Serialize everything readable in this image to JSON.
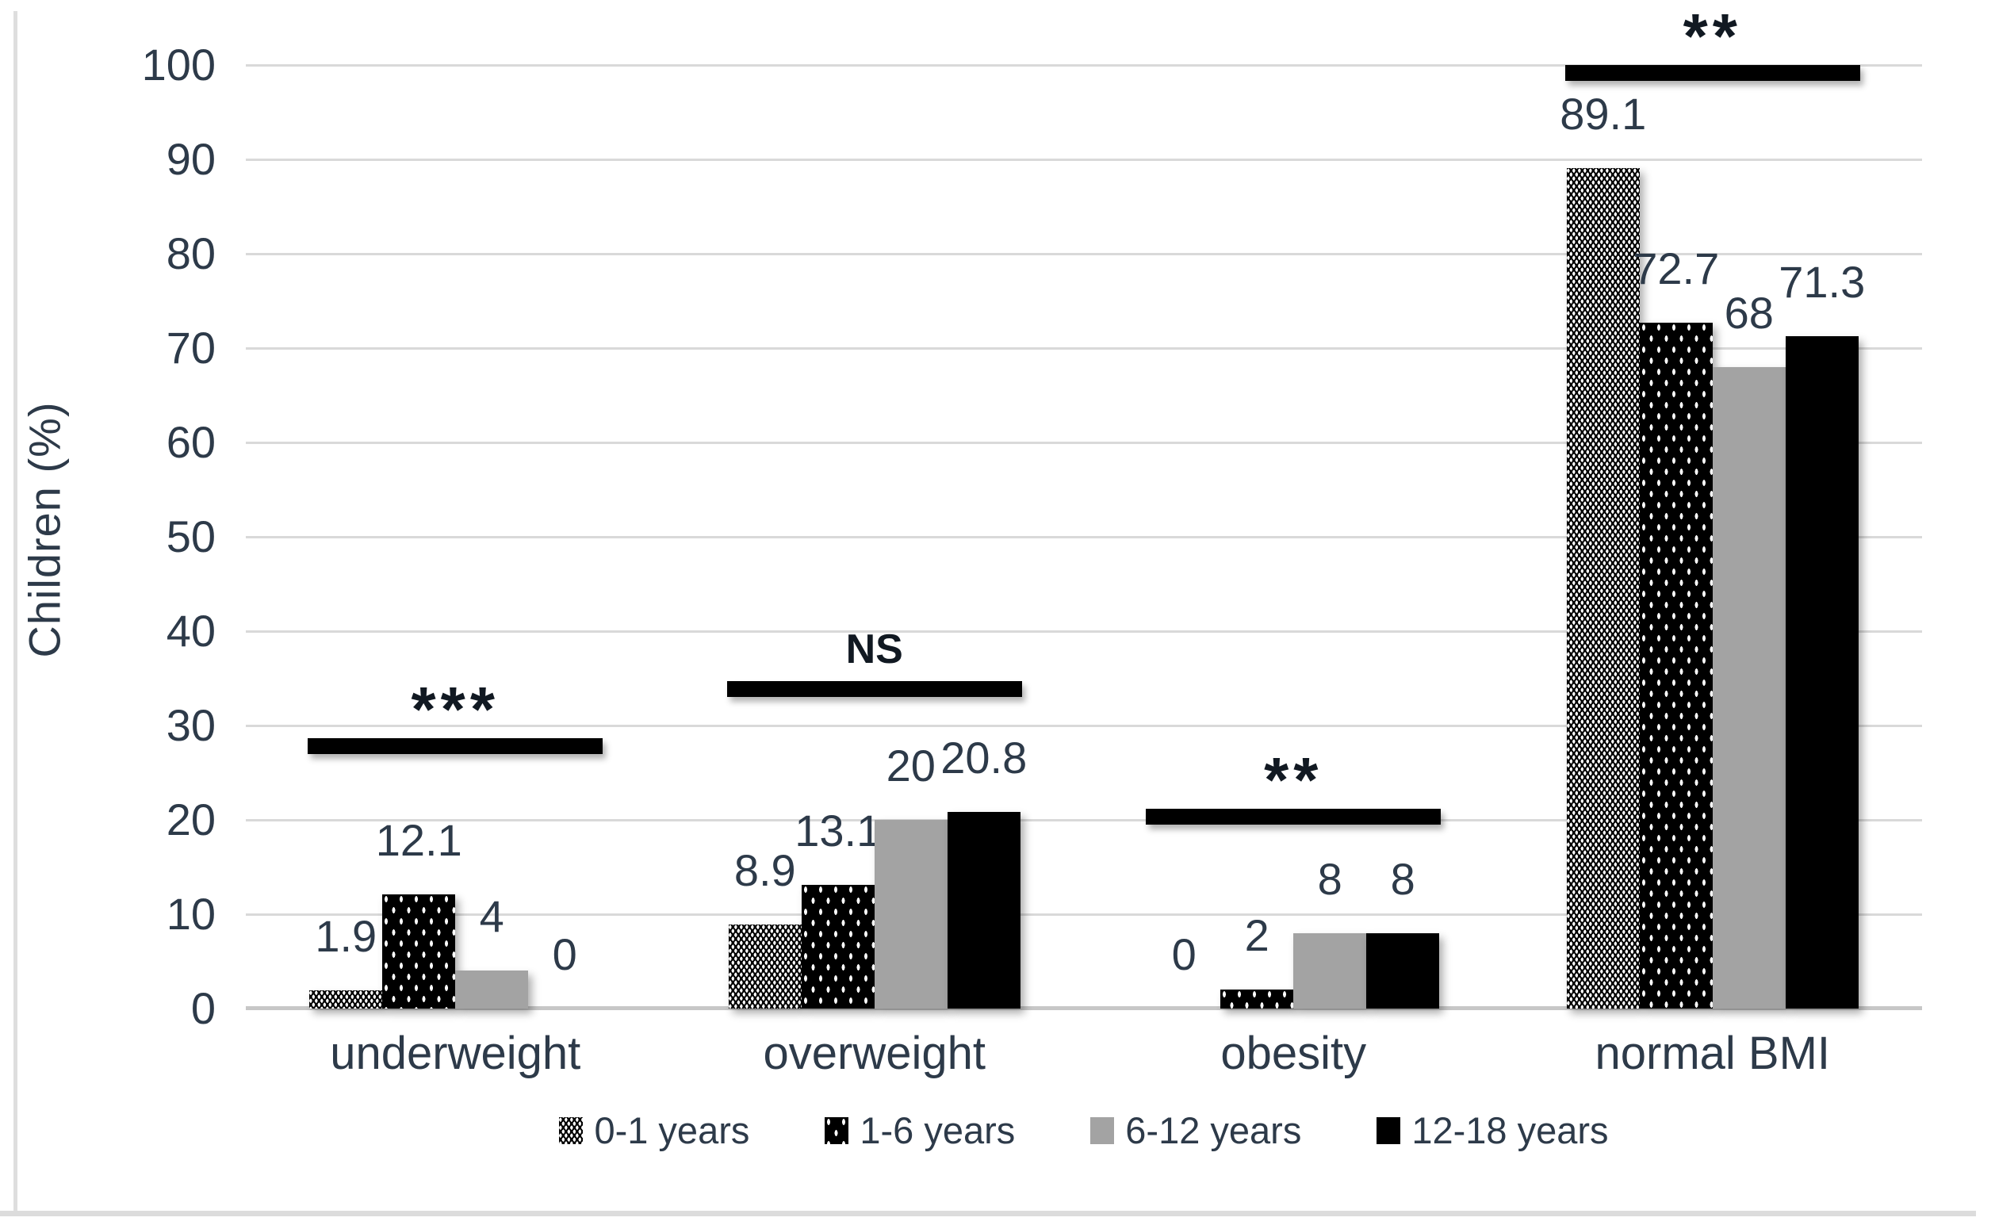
{
  "chart_data": {
    "type": "bar",
    "title": "",
    "ylabel": "Children  (%)",
    "xlabel": "",
    "ylim": [
      0,
      100
    ],
    "yticks": [
      0,
      10,
      20,
      30,
      40,
      50,
      60,
      70,
      80,
      90,
      100
    ],
    "grid": true,
    "legend_position": "bottom",
    "categories": [
      "underweight",
      "overweight",
      "obesity",
      "normal BMI"
    ],
    "series": [
      {
        "name": "0-1 years",
        "pattern": "dense-white-dashes-on-black",
        "color": "#000000",
        "values": [
          1.9,
          8.9,
          0,
          89.1
        ],
        "data_labels": [
          "1.9",
          "8.9",
          "0",
          "89.1"
        ]
      },
      {
        "name": "1-6 years",
        "pattern": "sparse-white-dashes-on-black",
        "color": "#000000",
        "values": [
          12.1,
          13.1,
          2,
          72.7
        ],
        "data_labels": [
          "12.1",
          "13.1",
          "2",
          "72.7"
        ]
      },
      {
        "name": "6-12 years",
        "pattern": "solid-gray",
        "color": "#a3a3a3",
        "values": [
          4,
          20,
          8,
          68
        ],
        "data_labels": [
          "4",
          "20",
          "8",
          "68"
        ]
      },
      {
        "name": "12-18 years",
        "pattern": "solid-black",
        "color": "#000000",
        "values": [
          0,
          20.8,
          8,
          71.3
        ],
        "data_labels": [
          "0",
          "20.8",
          "8",
          "71.3"
        ]
      }
    ],
    "annotations": [
      {
        "category": "underweight",
        "label": "***",
        "line_y": 27.0
      },
      {
        "category": "overweight",
        "label": "NS",
        "line_y": 33.0
      },
      {
        "category": "obesity",
        "label": "**",
        "line_y": 19.5
      },
      {
        "category": "normal BMI",
        "label": "**",
        "line_y": 98.3
      }
    ]
  },
  "colors": {
    "text": "#2d3a49",
    "gridline": "#d9d9d9",
    "axis_line": "#c7c7c7",
    "annotation_line": "#000000",
    "gray_series": "#a3a3a3",
    "black_series": "#000000",
    "frame": "#dcdcdc"
  }
}
